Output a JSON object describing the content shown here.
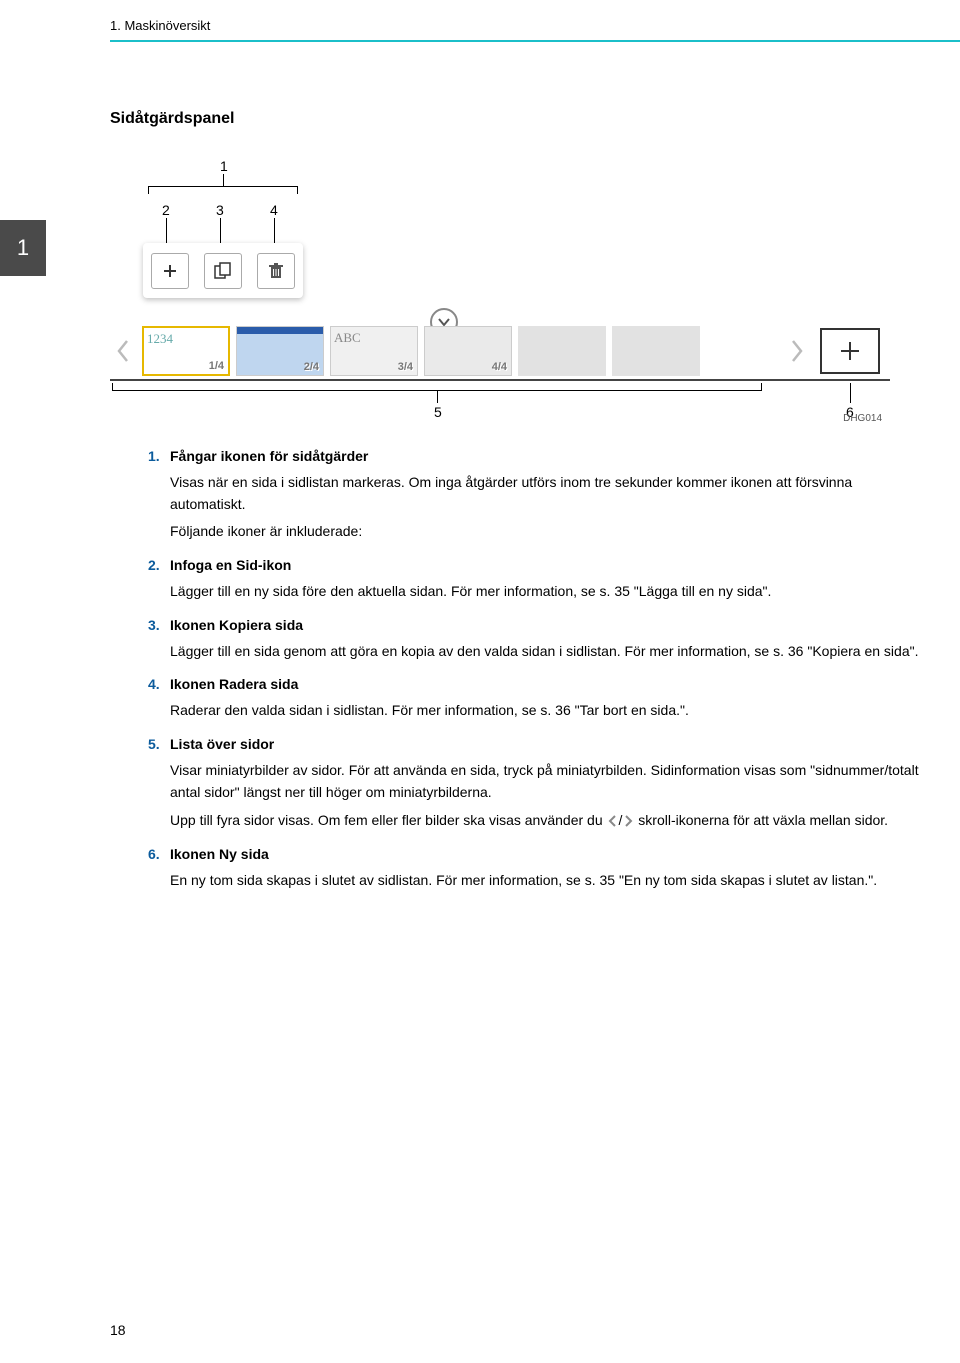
{
  "header": {
    "chapter": "1. Maskinöversikt"
  },
  "section_tab": "1",
  "subtitle": "Sidåtgärdspanel",
  "diagram": {
    "callouts": {
      "c1": "1",
      "c2": "2",
      "c3": "3",
      "c4": "4",
      "c5": "5",
      "c6": "6"
    },
    "thumbs": {
      "t1_text": "1234",
      "t1_page": "1/4",
      "t2_page": "2/4",
      "t3_text": "ABC",
      "t3_page": "3/4",
      "t4_page": "4/4"
    },
    "code": "DHG014"
  },
  "items": [
    {
      "num": "1.",
      "title": "Fångar ikonen för sidåtgärder",
      "body": [
        "Visas när en sida i sidlistan markeras. Om inga åtgärder utförs inom tre sekunder kommer ikonen att försvinna automatiskt.",
        "Följande ikoner är inkluderade:"
      ]
    },
    {
      "num": "2.",
      "title": "Infoga en Sid-ikon",
      "body": [
        "Lägger till en ny sida före den aktuella sidan. För mer information, se s. 35 \"Lägga till en ny sida\"."
      ]
    },
    {
      "num": "3.",
      "title": "Ikonen Kopiera sida",
      "body": [
        "Lägger till en sida genom att göra en kopia av den valda sidan i sidlistan. För mer information, se s. 36 \"Kopiera en sida\"."
      ]
    },
    {
      "num": "4.",
      "title": "Ikonen Radera sida",
      "body": [
        "Raderar den valda sidan i sidlistan. För mer information, se s. 36 \"Tar bort en sida.\"."
      ]
    },
    {
      "num": "5.",
      "title": "Lista över sidor",
      "body": [
        "Visar miniatyrbilder av sidor. För att använda en sida, tryck på miniatyrbilden. Sidinformation visas som \"sidnummer/totalt antal sidor\" längst ner till höger om miniatyrbilderna.",
        "Upp till fyra sidor visas. Om fem eller fler bilder ska visas använder du ⟨CHEV⟩ skroll-ikonerna för att växla mellan sidor."
      ]
    },
    {
      "num": "6.",
      "title": "Ikonen Ny sida",
      "body": [
        "En ny tom sida skapas i slutet av sidlistan. För mer information, se s. 35 \"En ny tom sida skapas i slutet av listan.\"."
      ]
    }
  ],
  "page_number": "18"
}
